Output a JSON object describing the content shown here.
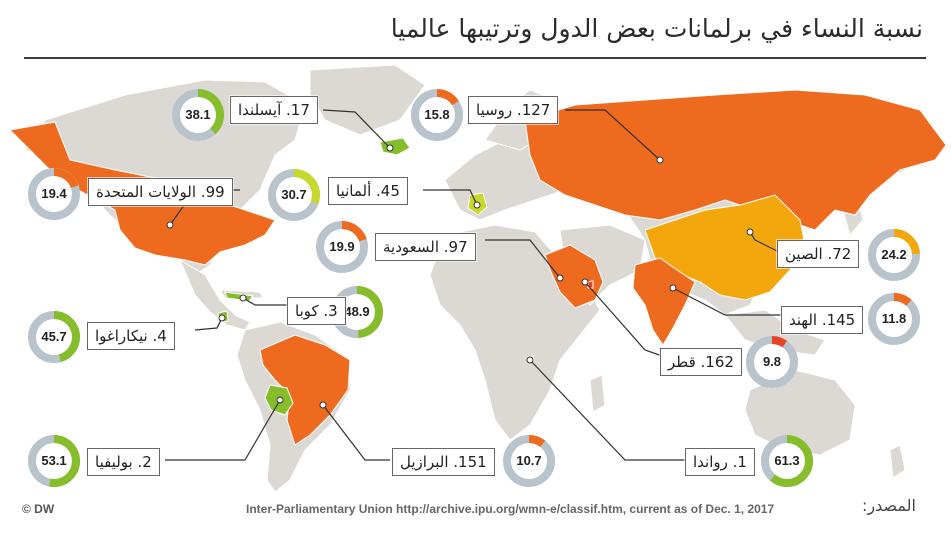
{
  "title": "نسبة النساء في برلمانات بعض الدول وترتيبها عالميا",
  "source_label": "المصدر:",
  "source_text": "Inter-Parliamentary Union http://archive.ipu.org/wmn-e/classif.htm, current as of Dec. 1, 2017",
  "logo": "© DW",
  "colors": {
    "land": "#dcd8d4",
    "border": "#ffffff",
    "orange": "#ee6a1f",
    "red": "#e8432a",
    "amber": "#f3a70c",
    "lime": "#c6d82b",
    "green": "#86bd2a",
    "donut_track": "#b9c3cc"
  },
  "countries": [
    {
      "id": "iceland",
      "label": "17. آيسلندا",
      "value": "38.1",
      "pct": 38.1,
      "color": "green"
    },
    {
      "id": "russia",
      "label": "127. روسيا",
      "value": "15.8",
      "pct": 15.8,
      "color": "orange"
    },
    {
      "id": "usa",
      "label": "99. الولايات المتحدة",
      "value": "19.4",
      "pct": 19.4,
      "color": "orange"
    },
    {
      "id": "germany",
      "label": "45. ألمانيا",
      "value": "30.7",
      "pct": 30.7,
      "color": "lime"
    },
    {
      "id": "saudi",
      "label": "97. السعودية",
      "value": "19.9",
      "pct": 19.9,
      "color": "orange"
    },
    {
      "id": "china",
      "label": "72. الصين",
      "value": "24.2",
      "pct": 24.2,
      "color": "amber"
    },
    {
      "id": "cuba",
      "label": "3. كوبا",
      "value": "48.9",
      "pct": 48.9,
      "color": "green"
    },
    {
      "id": "nicaragua",
      "label": "4. نيكاراغوا",
      "value": "45.7",
      "pct": 45.7,
      "color": "green"
    },
    {
      "id": "india",
      "label": "145. الهند",
      "value": "11.8",
      "pct": 11.8,
      "color": "orange"
    },
    {
      "id": "qatar",
      "label": "162. قطر",
      "value": "9.8",
      "pct": 9.8,
      "color": "red"
    },
    {
      "id": "bolivia",
      "label": "2. بوليفيا",
      "value": "53.1",
      "pct": 53.1,
      "color": "green"
    },
    {
      "id": "brazil",
      "label": "151. البرازيل",
      "value": "10.7",
      "pct": 10.7,
      "color": "orange"
    },
    {
      "id": "rwanda",
      "label": "1. رواندا",
      "value": "61.3",
      "pct": 61.3,
      "color": "green"
    }
  ]
}
